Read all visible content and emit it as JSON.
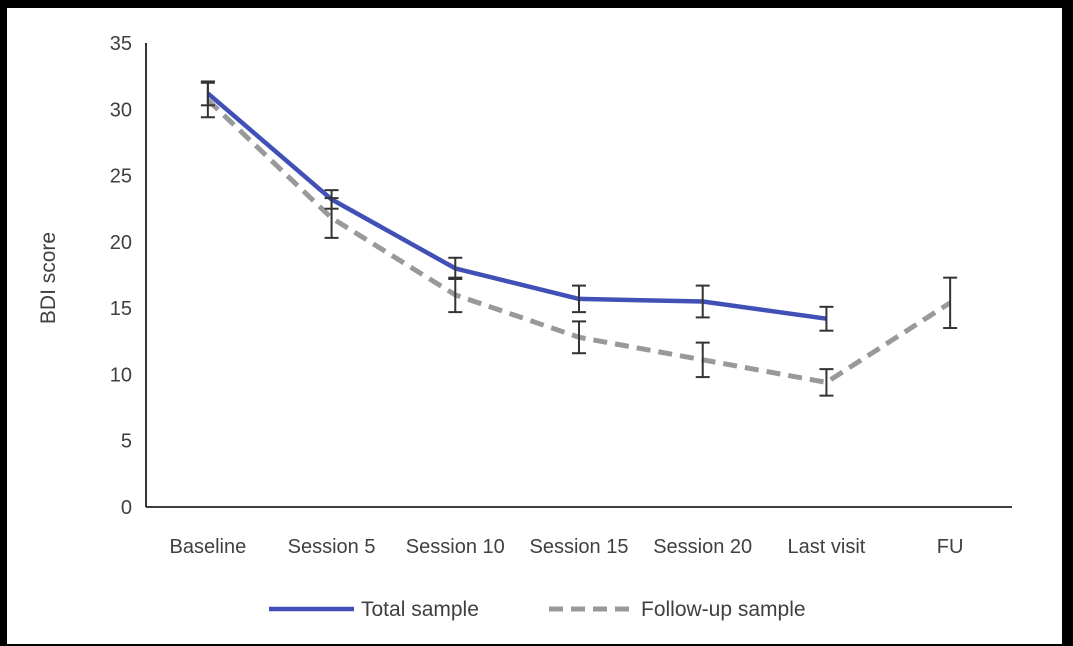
{
  "chart_data": {
    "type": "line",
    "title": "",
    "xlabel": "",
    "ylabel": "BDI score",
    "ylim": [
      0,
      35
    ],
    "yticks": [
      0,
      5,
      10,
      15,
      20,
      25,
      30,
      35
    ],
    "categories": [
      "Baseline",
      "Session 5",
      "Session 10",
      "Session 15",
      "Session 20",
      "Last visit",
      "FU"
    ],
    "legend_position": "bottom",
    "grid": false,
    "series": [
      {
        "name": "Total sample",
        "color": "#4150B6",
        "style": "solid",
        "values": [
          31.2,
          23.2,
          18.0,
          15.7,
          15.5,
          14.2,
          null
        ],
        "error": [
          0.9,
          0.7,
          0.8,
          1.0,
          1.2,
          0.9,
          null
        ]
      },
      {
        "name": "Follow-up sample",
        "color": "#999999",
        "style": "dashed",
        "values": [
          30.7,
          21.8,
          16.0,
          12.8,
          11.1,
          9.4,
          15.4
        ],
        "error": [
          1.3,
          1.5,
          1.3,
          1.2,
          1.3,
          1.0,
          1.9
        ]
      }
    ]
  }
}
